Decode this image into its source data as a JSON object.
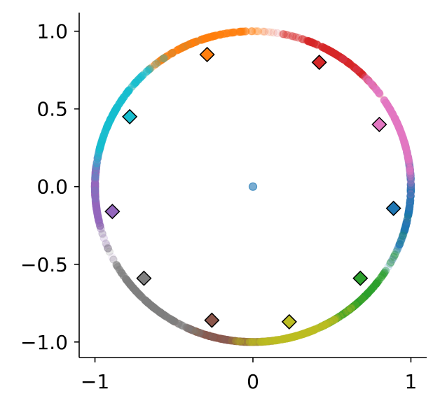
{
  "chart_data": {
    "type": "scatter",
    "title": "",
    "xlabel": "",
    "ylabel": "",
    "xlim": [
      -1.1,
      1.1
    ],
    "ylim": [
      -1.1,
      1.12
    ],
    "grid": false,
    "x_ticks": [
      {
        "value": -1,
        "label": "−1"
      },
      {
        "value": 0,
        "label": "0"
      },
      {
        "value": 1,
        "label": "1"
      }
    ],
    "y_ticks": [
      {
        "value": 1.0,
        "label": "1.0"
      },
      {
        "value": 0.5,
        "label": "0.5"
      },
      {
        "value": 0.0,
        "label": "0.0"
      },
      {
        "value": -0.5,
        "label": "−0.5"
      },
      {
        "value": -1.0,
        "label": "−1.0"
      }
    ],
    "center_point": {
      "x": 0.0,
      "y": 0.0,
      "color": "#1f77b4"
    },
    "clusters": [
      {
        "color": "#1f77b4",
        "centroid": {
          "x": 0.89,
          "y": -0.14
        },
        "arc_center_deg": -5,
        "arc_spread_deg": 14
      },
      {
        "color": "#ff7f0e",
        "centroid": {
          "x": -0.29,
          "y": 0.85
        },
        "arc_center_deg": 110,
        "arc_spread_deg": 14
      },
      {
        "color": "#2ca02c",
        "centroid": {
          "x": 0.68,
          "y": -0.59
        },
        "arc_center_deg": -50,
        "arc_spread_deg": 14
      },
      {
        "color": "#d62728",
        "centroid": {
          "x": 0.42,
          "y": 0.8
        },
        "arc_center_deg": 58,
        "arc_spread_deg": 12
      },
      {
        "color": "#9467bd",
        "centroid": {
          "x": -0.89,
          "y": -0.16
        },
        "arc_center_deg": 180,
        "arc_spread_deg": 12
      },
      {
        "color": "#8c564b",
        "centroid": {
          "x": -0.26,
          "y": -0.86
        },
        "arc_center_deg": -102,
        "arc_spread_deg": 12
      },
      {
        "color": "#e377c2",
        "centroid": {
          "x": 0.8,
          "y": 0.4
        },
        "arc_center_deg": 24,
        "arc_spread_deg": 13
      },
      {
        "color": "#7f7f7f",
        "centroid": {
          "x": -0.69,
          "y": -0.59
        },
        "arc_center_deg": -133,
        "arc_spread_deg": 14
      },
      {
        "color": "#bcbd22",
        "centroid": {
          "x": 0.23,
          "y": -0.87
        },
        "arc_center_deg": -74,
        "arc_spread_deg": 13
      },
      {
        "color": "#17becf",
        "centroid": {
          "x": -0.78,
          "y": 0.45
        },
        "arc_center_deg": 151,
        "arc_spread_deg": 14
      }
    ]
  }
}
